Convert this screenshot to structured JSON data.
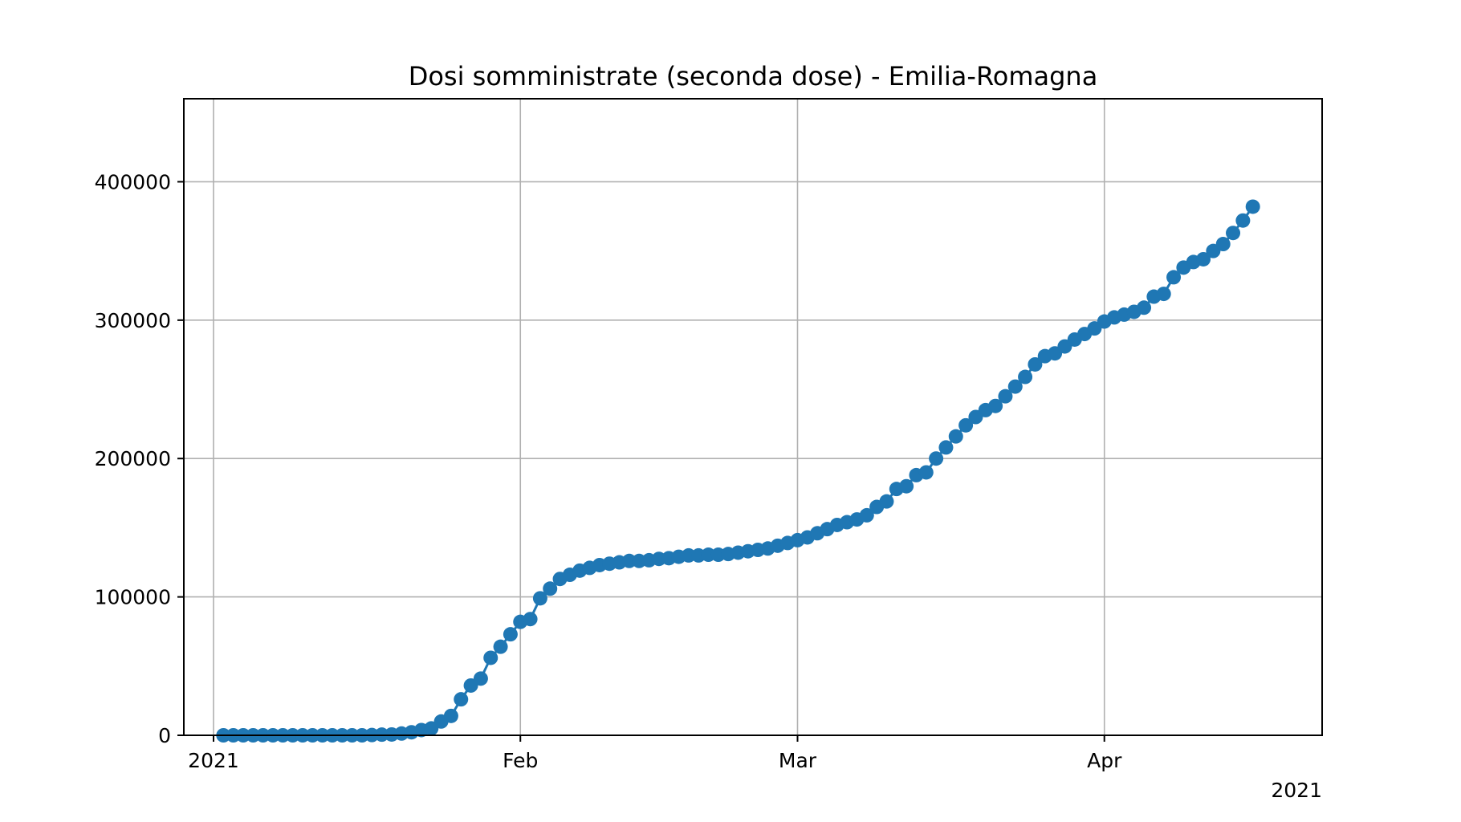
{
  "chart_data": {
    "type": "line",
    "title": "Dosi somministrate (seconda dose) - Emilia-Romagna",
    "xlabel": "",
    "ylabel": "",
    "x_axis": {
      "type": "date",
      "range": [
        "2020-12-29",
        "2021-04-23"
      ],
      "ticks": [
        {
          "date": "2021-01-01",
          "label": "2021"
        },
        {
          "date": "2021-02-01",
          "label": "Feb"
        },
        {
          "date": "2021-03-01",
          "label": "Mar"
        },
        {
          "date": "2021-04-01",
          "label": "Apr"
        }
      ],
      "offset_label": "2021"
    },
    "y_axis": {
      "range": [
        0,
        460000
      ],
      "ticks": [
        0,
        100000,
        200000,
        300000,
        400000
      ],
      "tick_labels": [
        "0",
        "100000",
        "200000",
        "300000",
        "400000"
      ]
    },
    "grid": true,
    "legend": "none",
    "colors": {
      "series": "#1f77b4"
    },
    "series": [
      {
        "marker": "circle",
        "points": [
          [
            "2021-01-02",
            0
          ],
          [
            "2021-01-03",
            0
          ],
          [
            "2021-01-04",
            0
          ],
          [
            "2021-01-05",
            0
          ],
          [
            "2021-01-06",
            0
          ],
          [
            "2021-01-07",
            0
          ],
          [
            "2021-01-08",
            0
          ],
          [
            "2021-01-09",
            0
          ],
          [
            "2021-01-10",
            0
          ],
          [
            "2021-01-11",
            0
          ],
          [
            "2021-01-12",
            0
          ],
          [
            "2021-01-13",
            0
          ],
          [
            "2021-01-14",
            0
          ],
          [
            "2021-01-15",
            0
          ],
          [
            "2021-01-16",
            0
          ],
          [
            "2021-01-17",
            200
          ],
          [
            "2021-01-18",
            500
          ],
          [
            "2021-01-19",
            600
          ],
          [
            "2021-01-20",
            1300
          ],
          [
            "2021-01-21",
            2200
          ],
          [
            "2021-01-22",
            3800
          ],
          [
            "2021-01-23",
            5000
          ],
          [
            "2021-01-24",
            10000
          ],
          [
            "2021-01-25",
            14000
          ],
          [
            "2021-01-26",
            26000
          ],
          [
            "2021-01-27",
            36000
          ],
          [
            "2021-01-28",
            41000
          ],
          [
            "2021-01-29",
            56000
          ],
          [
            "2021-01-30",
            64000
          ],
          [
            "2021-01-31",
            73000
          ],
          [
            "2021-02-01",
            82000
          ],
          [
            "2021-02-02",
            84000
          ],
          [
            "2021-02-03",
            99000
          ],
          [
            "2021-02-04",
            106000
          ],
          [
            "2021-02-05",
            113000
          ],
          [
            "2021-02-06",
            116000
          ],
          [
            "2021-02-07",
            119000
          ],
          [
            "2021-02-08",
            121000
          ],
          [
            "2021-02-09",
            123000
          ],
          [
            "2021-02-10",
            124000
          ],
          [
            "2021-02-11",
            125000
          ],
          [
            "2021-02-12",
            126000
          ],
          [
            "2021-02-13",
            126000
          ],
          [
            "2021-02-14",
            126500
          ],
          [
            "2021-02-15",
            127500
          ],
          [
            "2021-02-16",
            128000
          ],
          [
            "2021-02-17",
            129000
          ],
          [
            "2021-02-18",
            130000
          ],
          [
            "2021-02-19",
            130000
          ],
          [
            "2021-02-20",
            130500
          ],
          [
            "2021-02-21",
            130500
          ],
          [
            "2021-02-22",
            131000
          ],
          [
            "2021-02-23",
            132000
          ],
          [
            "2021-02-24",
            133000
          ],
          [
            "2021-02-25",
            134000
          ],
          [
            "2021-02-26",
            135000
          ],
          [
            "2021-02-27",
            137000
          ],
          [
            "2021-02-28",
            139000
          ],
          [
            "2021-03-01",
            141000
          ],
          [
            "2021-03-02",
            143000
          ],
          [
            "2021-03-03",
            146000
          ],
          [
            "2021-03-04",
            149000
          ],
          [
            "2021-03-05",
            152000
          ],
          [
            "2021-03-06",
            154000
          ],
          [
            "2021-03-07",
            156000
          ],
          [
            "2021-03-08",
            159000
          ],
          [
            "2021-03-09",
            165000
          ],
          [
            "2021-03-10",
            169000
          ],
          [
            "2021-03-11",
            178000
          ],
          [
            "2021-03-12",
            180000
          ],
          [
            "2021-03-13",
            188000
          ],
          [
            "2021-03-14",
            190000
          ],
          [
            "2021-03-15",
            200000
          ],
          [
            "2021-03-16",
            208000
          ],
          [
            "2021-03-17",
            216000
          ],
          [
            "2021-03-18",
            224000
          ],
          [
            "2021-03-19",
            230000
          ],
          [
            "2021-03-20",
            235000
          ],
          [
            "2021-03-21",
            238000
          ],
          [
            "2021-03-22",
            245000
          ],
          [
            "2021-03-23",
            252000
          ],
          [
            "2021-03-24",
            259000
          ],
          [
            "2021-03-25",
            268000
          ],
          [
            "2021-03-26",
            274000
          ],
          [
            "2021-03-27",
            276000
          ],
          [
            "2021-03-28",
            281000
          ],
          [
            "2021-03-29",
            286000
          ],
          [
            "2021-03-30",
            290000
          ],
          [
            "2021-03-31",
            294000
          ],
          [
            "2021-04-01",
            299000
          ],
          [
            "2021-04-02",
            302000
          ],
          [
            "2021-04-03",
            304000
          ],
          [
            "2021-04-04",
            306000
          ],
          [
            "2021-04-05",
            309000
          ],
          [
            "2021-04-06",
            317000
          ],
          [
            "2021-04-07",
            319000
          ],
          [
            "2021-04-08",
            331000
          ],
          [
            "2021-04-09",
            338000
          ],
          [
            "2021-04-10",
            342000
          ],
          [
            "2021-04-11",
            344000
          ],
          [
            "2021-04-12",
            350000
          ],
          [
            "2021-04-13",
            355000
          ],
          [
            "2021-04-14",
            363000
          ],
          [
            "2021-04-15",
            372000
          ],
          [
            "2021-04-16",
            382000
          ]
        ]
      }
    ]
  }
}
